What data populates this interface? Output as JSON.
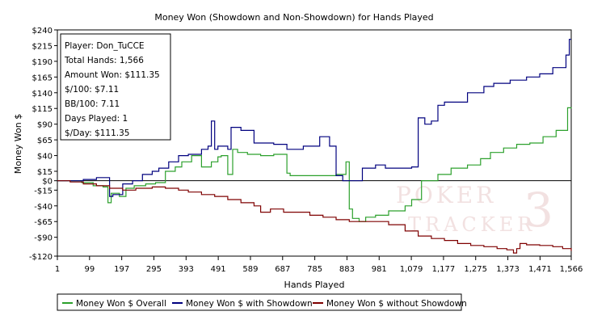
{
  "chart_data": {
    "type": "line",
    "title": "Money Won (Showdown and Non-Showdown) for Hands Played",
    "xlabel": "Hands Played",
    "ylabel": "Money Won $",
    "xlim": [
      1,
      1566
    ],
    "ylim": [
      -120,
      240
    ],
    "x_ticks": [
      1,
      99,
      197,
      295,
      393,
      491,
      589,
      687,
      785,
      883,
      981,
      1079,
      1177,
      1275,
      1373,
      1471,
      1566
    ],
    "x_tick_labels": [
      "1",
      "99",
      "197",
      "295",
      "393",
      "491",
      "589",
      "687",
      "785",
      "883",
      "981",
      "1,079",
      "1,177",
      "1,275",
      "1,373",
      "1,471",
      "1,566"
    ],
    "y_ticks": [
      240,
      215,
      190,
      165,
      140,
      115,
      90,
      65,
      40,
      15,
      0,
      -15,
      -40,
      -65,
      -90,
      -120
    ],
    "y_tick_labels": [
      "$240",
      "$215",
      "$190",
      "$165",
      "$140",
      "$115",
      "$90",
      "$65",
      "$40",
      "$15",
      "$0",
      "-$15",
      "-$40",
      "-$65",
      "-$90",
      "-$120"
    ],
    "grid": false,
    "legend_position": "bottom",
    "series": [
      {
        "name": "Money Won $ Overall",
        "color": "#2ca02c",
        "points": [
          [
            1,
            0
          ],
          [
            40,
            0
          ],
          [
            75,
            -3
          ],
          [
            110,
            -8
          ],
          [
            140,
            -10
          ],
          [
            155,
            -35
          ],
          [
            165,
            -20
          ],
          [
            190,
            -25
          ],
          [
            210,
            -12
          ],
          [
            235,
            -8
          ],
          [
            270,
            -5
          ],
          [
            300,
            -3
          ],
          [
            330,
            15
          ],
          [
            360,
            22
          ],
          [
            380,
            30
          ],
          [
            410,
            40
          ],
          [
            440,
            22
          ],
          [
            470,
            30
          ],
          [
            490,
            38
          ],
          [
            500,
            40
          ],
          [
            520,
            10
          ],
          [
            535,
            50
          ],
          [
            550,
            45
          ],
          [
            580,
            42
          ],
          [
            620,
            40
          ],
          [
            660,
            42
          ],
          [
            700,
            12
          ],
          [
            710,
            8
          ],
          [
            760,
            8
          ],
          [
            800,
            8
          ],
          [
            850,
            10
          ],
          [
            880,
            30
          ],
          [
            890,
            -45
          ],
          [
            900,
            -60
          ],
          [
            920,
            -65
          ],
          [
            940,
            -58
          ],
          [
            970,
            -55
          ],
          [
            1010,
            -48
          ],
          [
            1060,
            -40
          ],
          [
            1080,
            -30
          ],
          [
            1110,
            0
          ],
          [
            1140,
            0
          ],
          [
            1150,
            0
          ],
          [
            1160,
            10
          ],
          [
            1200,
            20
          ],
          [
            1250,
            25
          ],
          [
            1290,
            35
          ],
          [
            1320,
            45
          ],
          [
            1360,
            52
          ],
          [
            1400,
            58
          ],
          [
            1440,
            60
          ],
          [
            1480,
            70
          ],
          [
            1520,
            80
          ],
          [
            1545,
            80
          ],
          [
            1555,
            116
          ],
          [
            1566,
            115
          ]
        ]
      },
      {
        "name": "Money Won $ with Showdown",
        "color": "#00007f",
        "points": [
          [
            1,
            0
          ],
          [
            60,
            0
          ],
          [
            80,
            2
          ],
          [
            120,
            5
          ],
          [
            160,
            -25
          ],
          [
            170,
            -22
          ],
          [
            200,
            -5
          ],
          [
            230,
            0
          ],
          [
            260,
            10
          ],
          [
            290,
            15
          ],
          [
            310,
            20
          ],
          [
            340,
            30
          ],
          [
            370,
            40
          ],
          [
            400,
            42
          ],
          [
            440,
            50
          ],
          [
            460,
            55
          ],
          [
            470,
            95
          ],
          [
            480,
            50
          ],
          [
            490,
            55
          ],
          [
            520,
            50
          ],
          [
            530,
            85
          ],
          [
            560,
            80
          ],
          [
            600,
            60
          ],
          [
            660,
            58
          ],
          [
            700,
            50
          ],
          [
            750,
            55
          ],
          [
            800,
            70
          ],
          [
            830,
            55
          ],
          [
            850,
            8
          ],
          [
            870,
            0
          ],
          [
            890,
            0
          ],
          [
            930,
            20
          ],
          [
            970,
            25
          ],
          [
            1000,
            20
          ],
          [
            1030,
            20
          ],
          [
            1060,
            20
          ],
          [
            1080,
            22
          ],
          [
            1100,
            100
          ],
          [
            1120,
            90
          ],
          [
            1140,
            95
          ],
          [
            1160,
            120
          ],
          [
            1180,
            125
          ],
          [
            1210,
            125
          ],
          [
            1250,
            140
          ],
          [
            1300,
            150
          ],
          [
            1330,
            155
          ],
          [
            1380,
            160
          ],
          [
            1430,
            165
          ],
          [
            1470,
            170
          ],
          [
            1510,
            180
          ],
          [
            1550,
            200
          ],
          [
            1560,
            225
          ],
          [
            1566,
            225
          ]
        ]
      },
      {
        "name": "Money Won $ without Showdown",
        "color": "#7f0000",
        "points": [
          [
            1,
            0
          ],
          [
            40,
            -2
          ],
          [
            80,
            -5
          ],
          [
            120,
            -8
          ],
          [
            160,
            -12
          ],
          [
            200,
            -15
          ],
          [
            240,
            -12
          ],
          [
            290,
            -10
          ],
          [
            330,
            -12
          ],
          [
            370,
            -15
          ],
          [
            400,
            -18
          ],
          [
            440,
            -22
          ],
          [
            480,
            -25
          ],
          [
            520,
            -30
          ],
          [
            560,
            -35
          ],
          [
            600,
            -40
          ],
          [
            620,
            -50
          ],
          [
            650,
            -45
          ],
          [
            690,
            -50
          ],
          [
            730,
            -50
          ],
          [
            770,
            -55
          ],
          [
            810,
            -58
          ],
          [
            850,
            -62
          ],
          [
            890,
            -65
          ],
          [
            930,
            -65
          ],
          [
            970,
            -65
          ],
          [
            1010,
            -70
          ],
          [
            1060,
            -80
          ],
          [
            1100,
            -88
          ],
          [
            1140,
            -92
          ],
          [
            1180,
            -95
          ],
          [
            1220,
            -100
          ],
          [
            1260,
            -103
          ],
          [
            1300,
            -105
          ],
          [
            1340,
            -108
          ],
          [
            1370,
            -110
          ],
          [
            1390,
            -115
          ],
          [
            1400,
            -108
          ],
          [
            1410,
            -100
          ],
          [
            1430,
            -102
          ],
          [
            1470,
            -103
          ],
          [
            1510,
            -105
          ],
          [
            1540,
            -108
          ],
          [
            1566,
            -112
          ]
        ]
      }
    ],
    "stats_box": {
      "position": "top-left",
      "lines": [
        "Player: Don_TuCCE",
        "Total Hands: 1,566",
        "Amount Won: $111.35",
        "$/100: $7.11",
        "BB/100: 7.11",
        "Days Played: 1",
        "$/Day: $111.35"
      ]
    }
  }
}
